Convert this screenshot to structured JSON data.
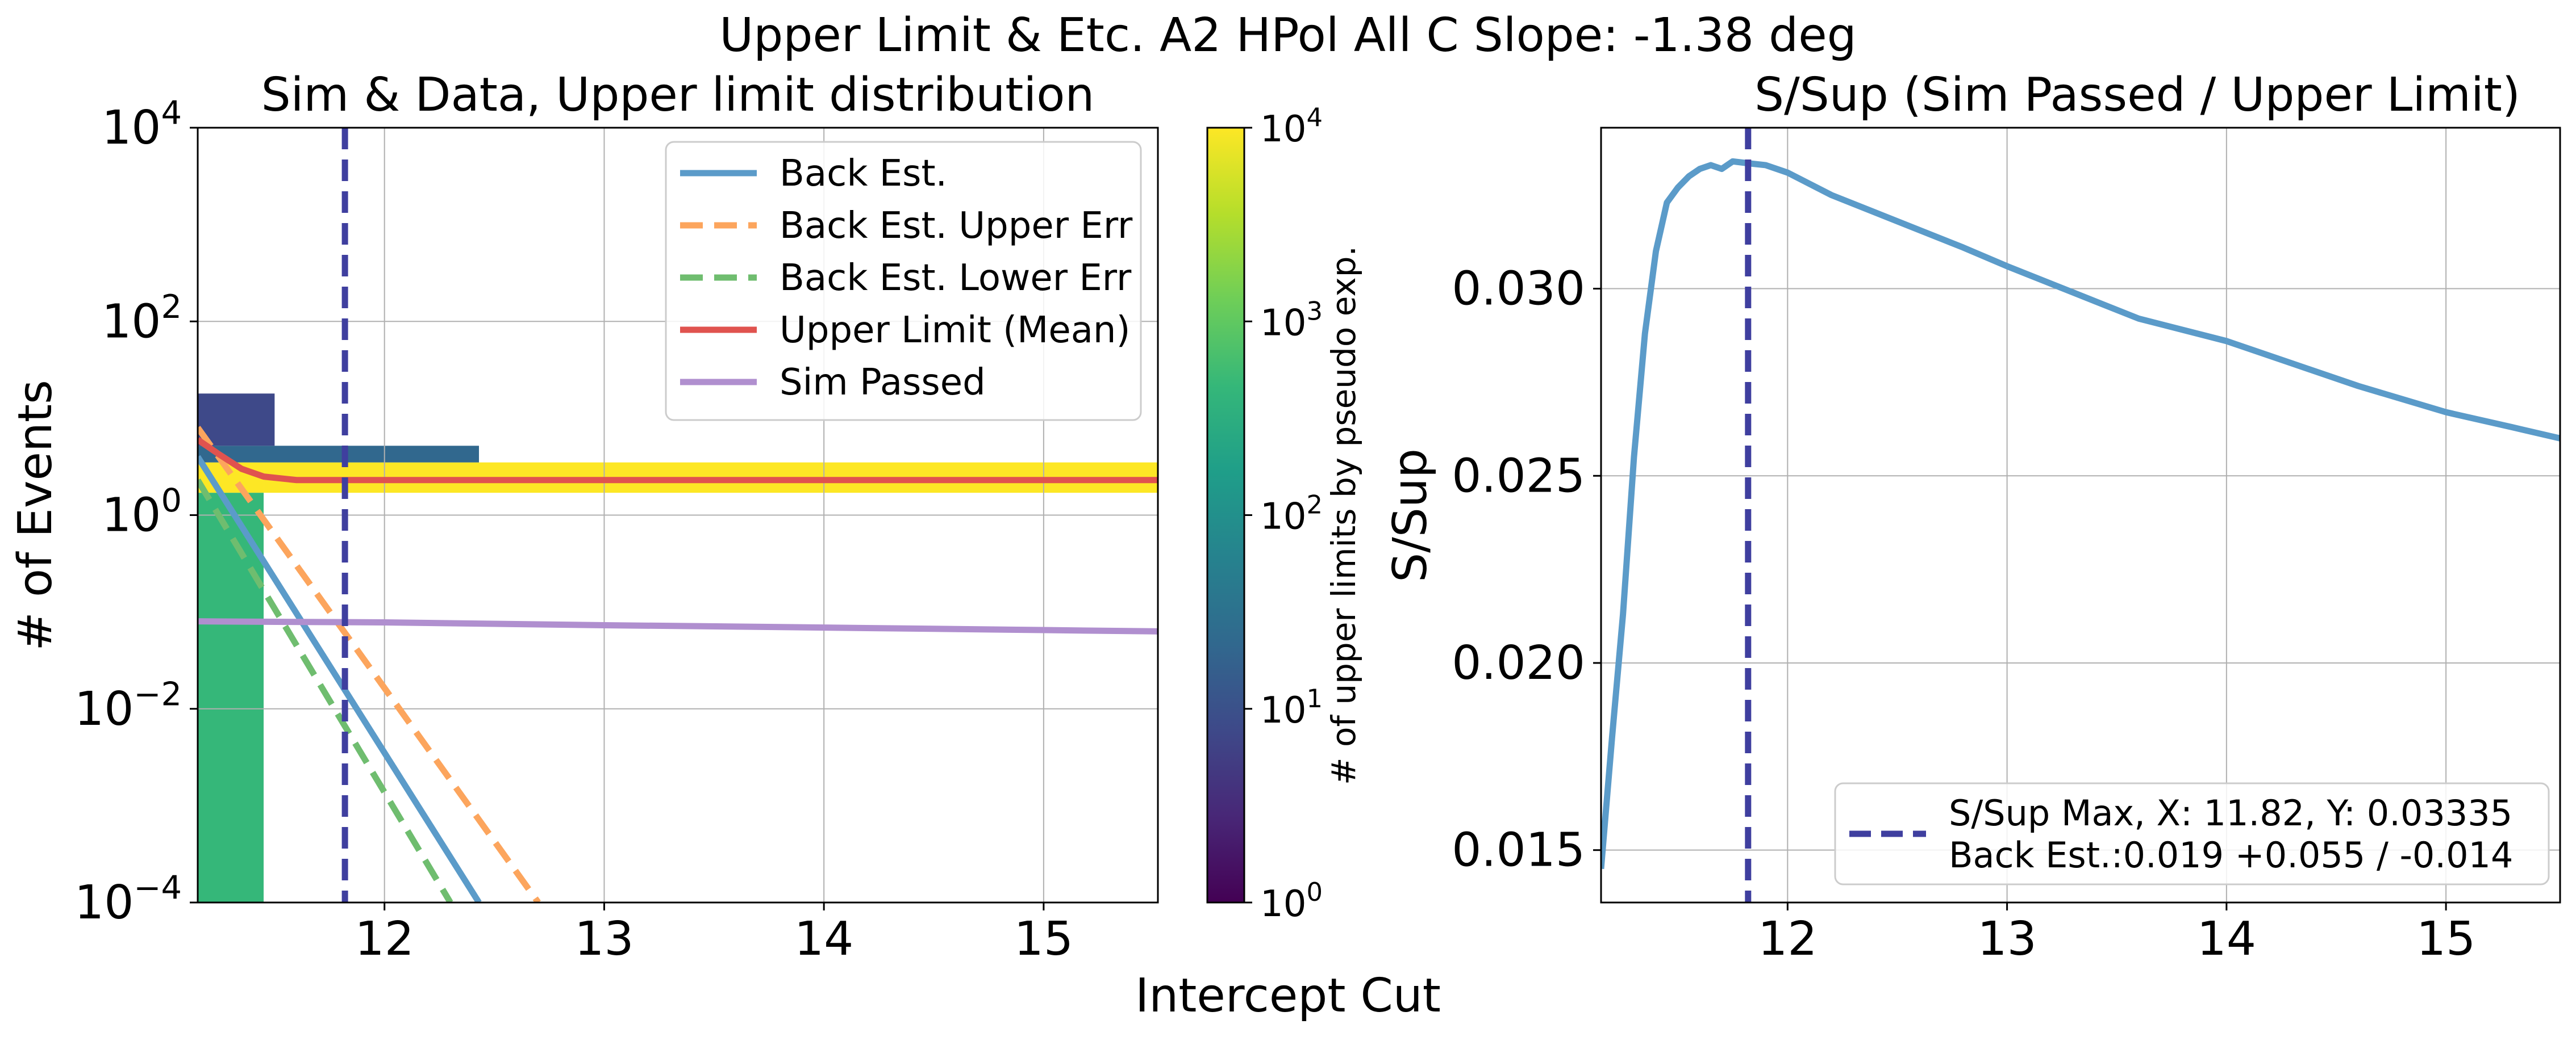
{
  "figure": {
    "suptitle": "Upper Limit & Etc. A2 HPol All C  Slope: -1.38 deg",
    "shared_xlabel": "Intercept Cut"
  },
  "chart_data": [
    {
      "type": "line",
      "title": "Sim & Data, Upper limit distribution",
      "ylabel": "# of Events",
      "xlim": [
        11.15,
        15.52
      ],
      "ylim": [
        0.0001,
        10000
      ],
      "yscale": "log",
      "grid": true,
      "xticks": [
        12,
        13,
        14,
        15
      ],
      "yticks": [
        {
          "value": 0.0001,
          "base": "10",
          "exp": "−4"
        },
        {
          "value": 0.01,
          "base": "10",
          "exp": "−2"
        },
        {
          "value": 1,
          "base": "10",
          "exp": "0"
        },
        {
          "value": 100,
          "base": "10",
          "exp": "2"
        },
        {
          "value": 10000,
          "base": "10",
          "exp": "4"
        }
      ],
      "vline": {
        "x": 11.82,
        "color": "#3f3f9f",
        "style": "dashed"
      },
      "legend_position": "top-right",
      "series": [
        {
          "name": "Back Est.",
          "color": "#5b9bc9",
          "style": "solid",
          "x": [
            11.15,
            12.43
          ],
          "y": [
            4.0,
            0.0001
          ]
        },
        {
          "name": "Back Est. Upper Err",
          "color": "#fca55d",
          "style": "dashed",
          "x": [
            11.15,
            12.7
          ],
          "y": [
            8.0,
            0.0001
          ]
        },
        {
          "name": "Back Est. Lower Err",
          "color": "#6fbd6f",
          "style": "dashed",
          "x": [
            11.15,
            12.3
          ],
          "y": [
            2.3,
            0.0001
          ]
        },
        {
          "name": "Upper Limit (Mean)",
          "color": "#e0534f",
          "style": "solid",
          "x": [
            11.15,
            11.25,
            11.35,
            11.45,
            11.6,
            11.82,
            12.5,
            13.5,
            14.5,
            15.52
          ],
          "y": [
            6.0,
            4.2,
            3.0,
            2.5,
            2.3,
            2.3,
            2.3,
            2.3,
            2.3,
            2.3
          ]
        },
        {
          "name": "Sim Passed",
          "color": "#b08fcf",
          "style": "solid",
          "x": [
            11.15,
            12,
            13,
            14,
            15,
            15.52
          ],
          "y": [
            0.08,
            0.078,
            0.073,
            0.069,
            0.065,
            0.063
          ]
        }
      ],
      "heatmap": {
        "colorbar_label": "# of upper limits by pseudo exp.",
        "colorbar_scale": "log",
        "colorbar_range": [
          1,
          10000
        ],
        "colorbar_ticks": [
          {
            "value": 1,
            "base": "10",
            "exp": "0"
          },
          {
            "value": 10,
            "base": "10",
            "exp": "1"
          },
          {
            "value": 100,
            "base": "10",
            "exp": "2"
          },
          {
            "value": 1000,
            "base": "10",
            "exp": "3"
          },
          {
            "value": 10000,
            "base": "10",
            "exp": "4"
          }
        ],
        "colormap": [
          "#440154",
          "#482777",
          "#3e4989",
          "#31688e",
          "#26828e",
          "#1f9e89",
          "#35b779",
          "#6ece58",
          "#b5de2b",
          "#fde725"
        ],
        "cells": [
          {
            "x0": 11.15,
            "x1": 11.45,
            "y0": 1.7,
            "y1": 3.5,
            "count": 10000
          },
          {
            "x0": 11.45,
            "x1": 15.52,
            "y0": 1.7,
            "y1": 3.5,
            "count": 10000
          },
          {
            "x0": 11.15,
            "x1": 11.45,
            "y0": 0.0001,
            "y1": 1.7,
            "count": 500
          },
          {
            "x0": 11.15,
            "x1": 12.43,
            "y0": 3.5,
            "y1": 5.2,
            "count": 30
          },
          {
            "x0": 11.15,
            "x1": 11.5,
            "y0": 5.2,
            "y1": 18,
            "count": 8
          }
        ]
      }
    },
    {
      "type": "line",
      "title": "S/Sup (Sim Passed / Upper Limit)",
      "ylabel": "S/Sup",
      "xlim": [
        11.15,
        15.52
      ],
      "ylim": [
        0.0136,
        0.0343
      ],
      "grid": true,
      "xticks": [
        12,
        13,
        14,
        15
      ],
      "yticks": [
        0.015,
        0.02,
        0.025,
        0.03
      ],
      "ytick_labels": [
        "0.015",
        "0.020",
        "0.025",
        "0.030"
      ],
      "vline": {
        "x": 11.82,
        "color": "#3f3f9f",
        "style": "dashed"
      },
      "legend_position": "lower-right",
      "legend_entry": {
        "label_line1": "S/Sup Max, X: 11.82, Y: 0.03335",
        "label_line2": "Back Est.:0.019 +0.055 / -0.014",
        "color": "#3f3f9f"
      },
      "series": [
        {
          "color": "#5b9bc9",
          "x": [
            11.15,
            11.2,
            11.25,
            11.3,
            11.35,
            11.4,
            11.45,
            11.5,
            11.55,
            11.6,
            11.65,
            11.7,
            11.75,
            11.82,
            11.9,
            12.0,
            12.2,
            12.5,
            12.8,
            13.0,
            13.3,
            13.6,
            14.0,
            14.3,
            14.6,
            15.0,
            15.3,
            15.52
          ],
          "y": [
            0.0145,
            0.018,
            0.0213,
            0.0255,
            0.0288,
            0.031,
            0.0323,
            0.0327,
            0.033,
            0.0332,
            0.0333,
            0.0332,
            0.0334,
            0.03335,
            0.0333,
            0.0331,
            0.0325,
            0.0318,
            0.0311,
            0.0306,
            0.0299,
            0.0292,
            0.0286,
            0.028,
            0.0274,
            0.0267,
            0.0263,
            0.026
          ]
        }
      ]
    }
  ]
}
